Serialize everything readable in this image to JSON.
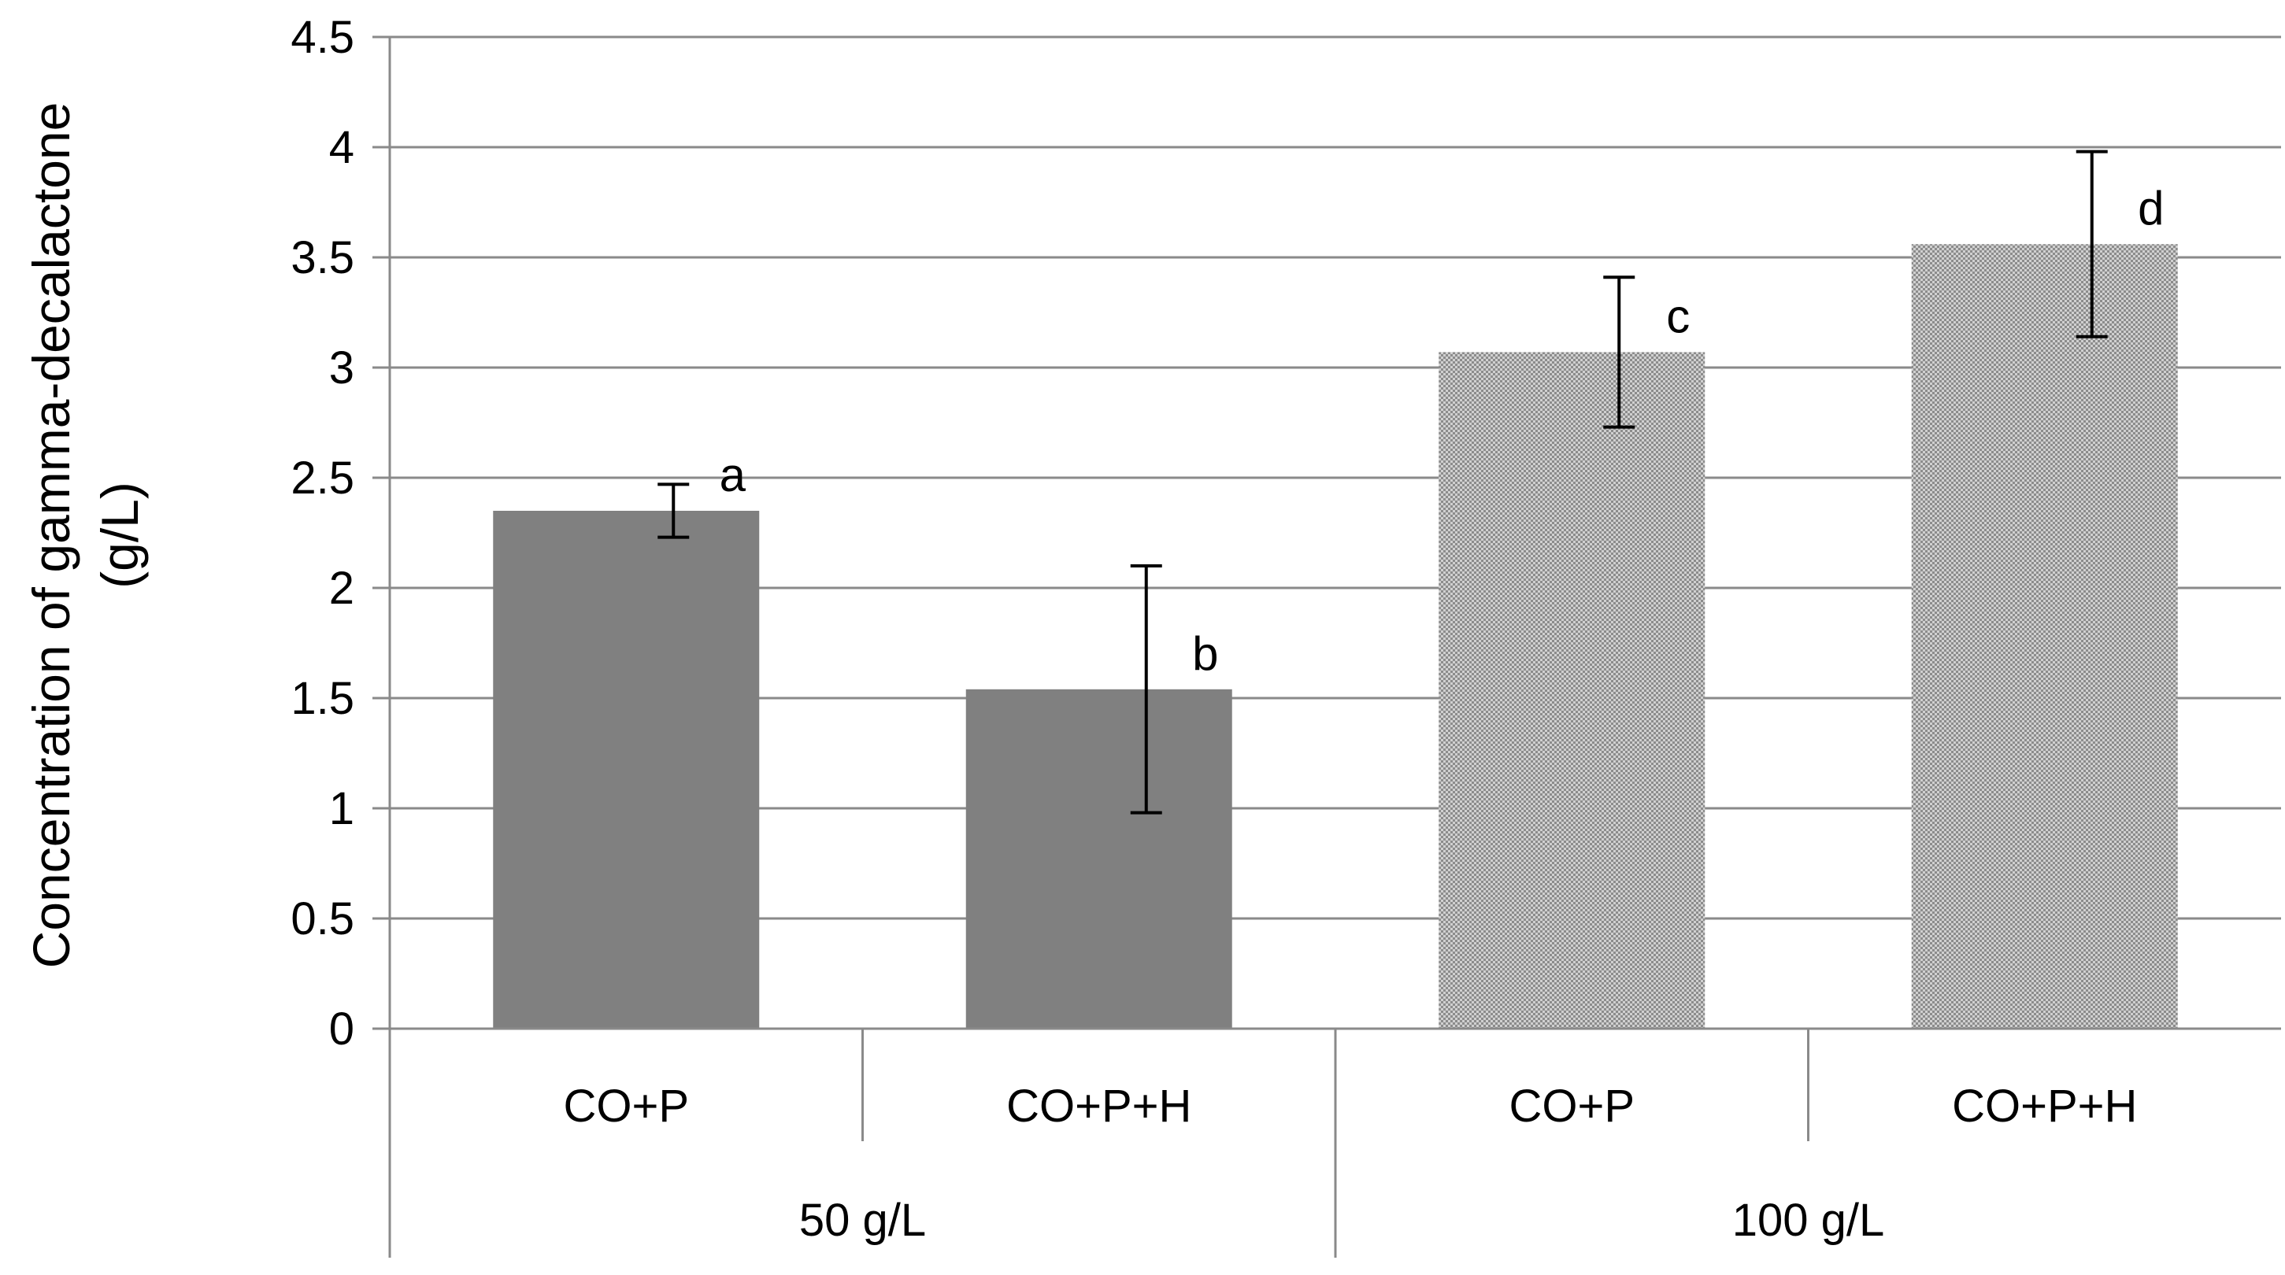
{
  "chart_data": {
    "type": "bar",
    "title": "",
    "ylabel_line1": "Concentration of gamma-decalactone",
    "ylabel_line2": "(g/L)",
    "xlabel": "",
    "ylim": [
      0,
      4.5
    ],
    "yticks": [
      0,
      0.5,
      1,
      1.5,
      2,
      2.5,
      3,
      3.5,
      4,
      4.5
    ],
    "ytick_labels": [
      "0",
      "0.5",
      "1",
      "1.5",
      "2",
      "2.5",
      "3",
      "3.5",
      "4",
      "4.5"
    ],
    "grid": "horizontal",
    "legend": "none",
    "groups": [
      {
        "name": "50 g/L",
        "fill": "solid",
        "color": "#808080",
        "bars": [
          {
            "category": "CO+P",
            "value": 2.35,
            "error": 0.12,
            "letter": "a"
          },
          {
            "category": "CO+P+H",
            "value": 1.54,
            "error": 0.56,
            "letter": "b"
          }
        ]
      },
      {
        "name": "100 g/L",
        "fill": "checkered",
        "color": "#b8b8b8",
        "bars": [
          {
            "category": "CO+P",
            "value": 3.07,
            "error": 0.34,
            "letter": "c"
          },
          {
            "category": "CO+P+H",
            "value": 3.56,
            "error": 0.42,
            "letter": "d"
          }
        ]
      }
    ]
  }
}
